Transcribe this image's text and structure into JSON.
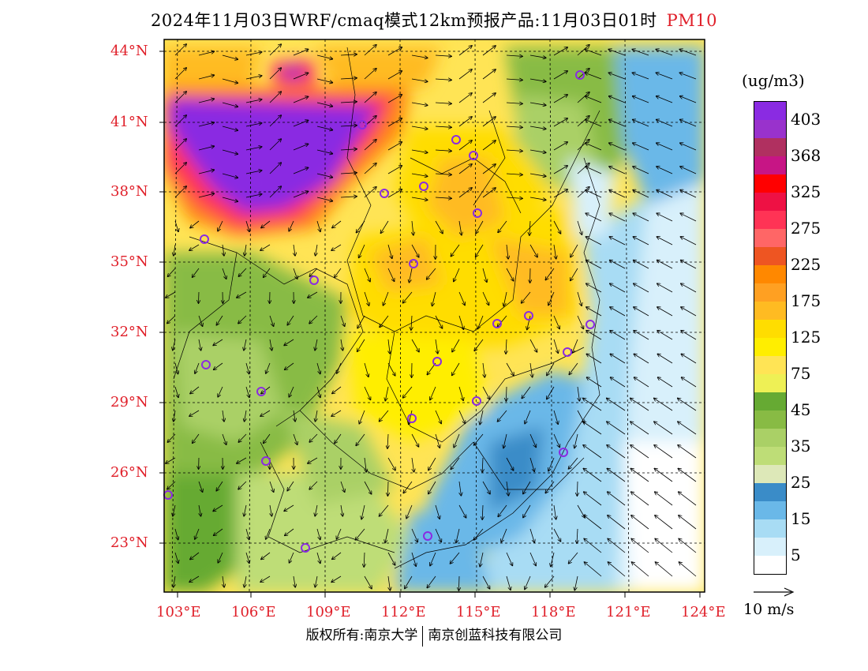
{
  "header": {
    "title": "2024年11月03日WRF/cmaq模式12km预报产品:11月03日01时",
    "product": "PM10"
  },
  "map": {
    "lat_labels": [
      "44°N",
      "41°N",
      "38°N",
      "35°N",
      "32°N",
      "29°N",
      "26°N",
      "23°N"
    ],
    "lon_labels": [
      "103°E",
      "106°E",
      "109°E",
      "112°E",
      "115°E",
      "118°E",
      "121°E",
      "124°E"
    ]
  },
  "legend": {
    "unit": "(ug/m3)",
    "levels": [
      {
        "label": "403",
        "color": "#8a2be2"
      },
      {
        "label": "",
        "color": "#9932cc"
      },
      {
        "label": "368",
        "color": "#b03060"
      },
      {
        "label": "",
        "color": "#c71585"
      },
      {
        "label": "325",
        "color": "#ff0000"
      },
      {
        "label": "",
        "color": "#ee1144"
      },
      {
        "label": "275",
        "color": "#ff3355"
      },
      {
        "label": "",
        "color": "#ff6666"
      },
      {
        "label": "225",
        "color": "#ee5522"
      },
      {
        "label": "",
        "color": "#ff8800"
      },
      {
        "label": "175",
        "color": "#ffa022"
      },
      {
        "label": "",
        "color": "#ffbb22"
      },
      {
        "label": "125",
        "color": "#ffdd00"
      },
      {
        "label": "",
        "color": "#ffee00"
      },
      {
        "label": "75",
        "color": "#ffe455"
      },
      {
        "label": "",
        "color": "#eef055"
      },
      {
        "label": "45",
        "color": "#66aa33"
      },
      {
        "label": "",
        "color": "#88bb44"
      },
      {
        "label": "35",
        "color": "#aad066"
      },
      {
        "label": "",
        "color": "#bedd77"
      },
      {
        "label": "25",
        "color": "#dde8b8"
      },
      {
        "label": "",
        "color": "#3a8cc8"
      },
      {
        "label": "15",
        "color": "#6ab8e8"
      },
      {
        "label": "",
        "color": "#a8dcf4"
      },
      {
        "label": "5",
        "color": "#d8f0fb"
      },
      {
        "label": "",
        "color": "#ffffff"
      }
    ]
  },
  "wind_reference": {
    "label": "10 m/s"
  },
  "footer": {
    "copyright_left": "版权所有:南京大学",
    "copyright_right": "南京创蓝科技有限公司"
  }
}
